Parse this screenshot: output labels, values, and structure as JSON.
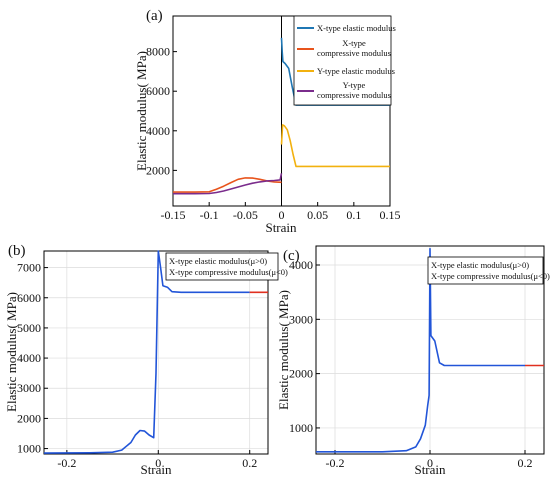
{
  "chart_data": [
    {
      "type": "line",
      "panel_label": "(a)",
      "xlabel": "Strain",
      "ylabel": "Elastic modulus( MPa)",
      "xlim": [
        -0.15,
        0.15
      ],
      "ylim": [
        200,
        9800
      ],
      "x_ticks": [
        -0.15,
        -0.1,
        -0.05,
        0,
        0.05,
        0.1,
        0.15
      ],
      "x_tick_labels": [
        "-0.15",
        "-0.1",
        "-0.05",
        "0",
        "0.05",
        "0.1",
        "0.15"
      ],
      "y_ticks": [
        2000,
        4000,
        6000,
        8000
      ],
      "y_tick_labels": [
        "2000",
        "4000",
        "6000",
        "8000"
      ],
      "grid": false,
      "legend_position": "top-right",
      "series": [
        {
          "name": "X-type elastic modulus",
          "color": "#1f77b4",
          "points": [
            [
              0.0,
              8700
            ],
            [
              0.001,
              8000
            ],
            [
              0.002,
              7500
            ],
            [
              0.005,
              7400
            ],
            [
              0.01,
              7150
            ],
            [
              0.015,
              6200
            ],
            [
              0.02,
              5300
            ],
            [
              0.05,
              5300
            ],
            [
              0.1,
              5300
            ],
            [
              0.15,
              5300
            ]
          ]
        },
        {
          "name": "X-type\ncompressive modulus",
          "color": "#e8541c",
          "points": [
            [
              -0.15,
              900
            ],
            [
              -0.12,
              900
            ],
            [
              -0.1,
              920
            ],
            [
              -0.09,
              1050
            ],
            [
              -0.08,
              1200
            ],
            [
              -0.07,
              1380
            ],
            [
              -0.06,
              1550
            ],
            [
              -0.05,
              1620
            ],
            [
              -0.04,
              1610
            ],
            [
              -0.03,
              1550
            ],
            [
              -0.02,
              1470
            ],
            [
              -0.01,
              1420
            ],
            [
              0.0,
              1400
            ]
          ]
        },
        {
          "name": "Y-type elastic modulus",
          "color": "#f2b10f",
          "points": [
            [
              0.0,
              3300
            ],
            [
              0.0015,
              4300
            ],
            [
              0.004,
              4250
            ],
            [
              0.008,
              4050
            ],
            [
              0.012,
              3500
            ],
            [
              0.016,
              2800
            ],
            [
              0.02,
              2200
            ],
            [
              0.05,
              2200
            ],
            [
              0.1,
              2200
            ],
            [
              0.15,
              2200
            ]
          ]
        },
        {
          "name": "Y-type\ncompressive modulus",
          "color": "#7a2c8c",
          "points": [
            [
              -0.15,
              820
            ],
            [
              -0.12,
              820
            ],
            [
              -0.1,
              830
            ],
            [
              -0.09,
              880
            ],
            [
              -0.08,
              960
            ],
            [
              -0.07,
              1060
            ],
            [
              -0.06,
              1160
            ],
            [
              -0.05,
              1260
            ],
            [
              -0.04,
              1350
            ],
            [
              -0.03,
              1420
            ],
            [
              -0.02,
              1470
            ],
            [
              -0.01,
              1490
            ],
            [
              -0.002,
              1520
            ],
            [
              0.0,
              1850
            ]
          ]
        }
      ]
    },
    {
      "type": "line",
      "panel_label": "(b)",
      "xlabel": "Strain",
      "ylabel": "Elastic modulus( MPa)",
      "xlim": [
        -0.25,
        0.24
      ],
      "ylim": [
        820,
        7550
      ],
      "x_ticks": [
        -0.2,
        0,
        0.2
      ],
      "x_tick_labels": [
        "-0.2",
        "0",
        "0.2"
      ],
      "y_ticks": [
        1000,
        2000,
        3000,
        4000,
        5000,
        6000,
        7000
      ],
      "y_tick_labels": [
        "1000",
        "2000",
        "3000",
        "4000",
        "5000",
        "6000",
        "7000"
      ],
      "grid": true,
      "legend_position": "top-right",
      "legend_entries": [
        "X-type elastic modulus(μ>0)",
        "X-type compressive modulus(μ<0)"
      ],
      "series": [
        {
          "name": "X-type elastic modulus(μ>0)",
          "color": "#2255d8",
          "points": [
            [
              -0.25,
              850
            ],
            [
              -0.15,
              860
            ],
            [
              -0.1,
              880
            ],
            [
              -0.08,
              950
            ],
            [
              -0.06,
              1200
            ],
            [
              -0.05,
              1450
            ],
            [
              -0.04,
              1600
            ],
            [
              -0.03,
              1580
            ],
            [
              -0.02,
              1450
            ],
            [
              -0.01,
              1360
            ],
            [
              -0.005,
              3500
            ],
            [
              0.0,
              7550
            ],
            [
              0.005,
              7000
            ],
            [
              0.01,
              6400
            ],
            [
              0.02,
              6350
            ],
            [
              0.03,
              6200
            ],
            [
              0.05,
              6180
            ],
            [
              0.1,
              6180
            ],
            [
              0.15,
              6180
            ],
            [
              0.2,
              6180
            ]
          ]
        },
        {
          "name": "X-type compressive modulus(μ<0)",
          "color": "#e03020",
          "points": [
            [
              0.2,
              6180
            ],
            [
              0.24,
              6180
            ]
          ]
        }
      ]
    },
    {
      "type": "line",
      "panel_label": "(c)",
      "xlabel": "Strain",
      "ylabel": "Elastic modulus( MPa)",
      "xlim": [
        -0.24,
        0.24
      ],
      "ylim": [
        520,
        4350
      ],
      "x_ticks": [
        -0.2,
        0,
        0.2
      ],
      "x_tick_labels": [
        "-0.2",
        "0",
        "0.2"
      ],
      "y_ticks": [
        1000,
        2000,
        3000,
        4000
      ],
      "y_tick_labels": [
        "1000",
        "2000",
        "3000",
        "4000"
      ],
      "grid": true,
      "legend_position": "top-right",
      "legend_entries": [
        "X-type elastic modulus(μ>0)",
        "X-type compressive modulus(μ<0)"
      ],
      "series": [
        {
          "name": "X-type elastic modulus(μ>0)",
          "color": "#2255d8",
          "points": [
            [
              -0.24,
              560
            ],
            [
              -0.1,
              560
            ],
            [
              -0.05,
              580
            ],
            [
              -0.03,
              650
            ],
            [
              -0.02,
              800
            ],
            [
              -0.01,
              1050
            ],
            [
              -0.005,
              1400
            ],
            [
              -0.002,
              1600
            ],
            [
              0.0,
              4300
            ],
            [
              0.002,
              2700
            ],
            [
              0.01,
              2600
            ],
            [
              0.02,
              2200
            ],
            [
              0.03,
              2150
            ],
            [
              0.1,
              2150
            ],
            [
              0.2,
              2150
            ]
          ]
        },
        {
          "name": "X-type compressive modulus(μ<0)",
          "color": "#e03020",
          "points": [
            [
              0.2,
              2150
            ],
            [
              0.24,
              2150
            ]
          ]
        }
      ]
    }
  ]
}
